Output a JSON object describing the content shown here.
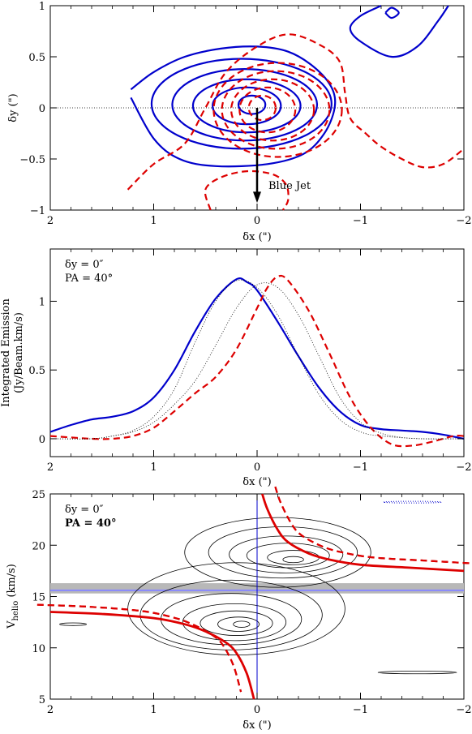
{
  "figure": {
    "panels": [
      {
        "id": "top",
        "xlabel": "δx (\")",
        "ylabel": "δy (\")",
        "xlim": [
          2,
          -2
        ],
        "ylim": [
          -1,
          1
        ],
        "xticks": [
          2,
          1,
          0,
          -1,
          -2
        ],
        "xtick_labels": [
          "2",
          "1",
          "0",
          "−1",
          "−2"
        ],
        "yticks": [
          1,
          0.5,
          0,
          -0.5,
          -1
        ],
        "ytick_labels": [
          "1",
          "0.5",
          "0",
          "−0.5",
          "−1"
        ],
        "annotation": "Blue Jet"
      },
      {
        "id": "middle",
        "xlabel": "δx (\")",
        "ylabel_line1": "Integrated Emission",
        "ylabel_line2": "(Jy/Beam.km/s)",
        "xlim": [
          2,
          -2
        ],
        "ylim": [
          -0.13,
          1.38
        ],
        "xticks": [
          2,
          1,
          0,
          -1,
          -2
        ],
        "xtick_labels": [
          "2",
          "1",
          "0",
          "−1",
          "−2"
        ],
        "yticks": [
          0,
          0.5,
          1
        ],
        "ytick_labels": [
          "0",
          "0.5",
          "1"
        ],
        "annotation_line1": "δy = 0″",
        "annotation_line2": "PA = 40°"
      },
      {
        "id": "bottom",
        "xlabel": "δx (\")",
        "ylabel": "V_helio (km/s)",
        "ylabel_main": "V",
        "ylabel_sub": "helio",
        "ylabel_unit": " (km/s)",
        "xlim": [
          2,
          -2
        ],
        "ylim": [
          5,
          25
        ],
        "xticks": [
          2,
          1,
          0,
          -1,
          -2
        ],
        "xtick_labels": [
          "2",
          "1",
          "0",
          "−1",
          "−2"
        ],
        "yticks": [
          5,
          10,
          15,
          20,
          25
        ],
        "ytick_labels": [
          "5",
          "10",
          "15",
          "20",
          "25"
        ],
        "annotation_line1": "δy = 0″",
        "annotation_line2": "PA = 40°"
      }
    ]
  },
  "chart_data": [
    {
      "type": "contour",
      "panel": "top",
      "series": [
        {
          "style": "blue-solid",
          "color": "#0000cc",
          "contours": [
            {
              "cx": 0.05,
              "cy": 0.03,
              "rx": 0.13,
              "ry": 0.09
            },
            {
              "cx": 0.1,
              "cy": 0.02,
              "rx": 0.33,
              "ry": 0.18
            },
            {
              "cx": 0.1,
              "cy": 0.02,
              "rx": 0.52,
              "ry": 0.26
            },
            {
              "cx": 0.12,
              "cy": 0.03,
              "rx": 0.7,
              "ry": 0.35
            },
            {
              "cx": 0.15,
              "cy": 0.04,
              "rx": 0.87,
              "ry": 0.44
            }
          ],
          "outer_contour": [
            [
              1.22,
              0.18
            ],
            [
              1.0,
              0.35
            ],
            [
              0.7,
              0.5
            ],
            [
              0.35,
              0.58
            ],
            [
              0.0,
              0.6
            ],
            [
              -0.3,
              0.55
            ],
            [
              -0.55,
              0.4
            ],
            [
              -0.72,
              0.2
            ],
            [
              -0.75,
              0.0
            ],
            [
              -0.65,
              -0.25
            ],
            [
              -0.45,
              -0.45
            ],
            [
              -0.1,
              -0.55
            ],
            [
              0.4,
              -0.57
            ],
            [
              0.75,
              -0.5
            ],
            [
              1.0,
              -0.3
            ],
            [
              1.22,
              0.1
            ]
          ],
          "corner_contour": [
            [
              -1.2,
              1.0
            ],
            [
              -1.0,
              0.9
            ],
            [
              -0.9,
              0.78
            ],
            [
              -1.0,
              0.65
            ],
            [
              -1.3,
              0.5
            ],
            [
              -1.55,
              0.6
            ],
            [
              -1.75,
              0.85
            ],
            [
              -1.85,
              1.0
            ]
          ],
          "small_loop": [
            [
              -1.24,
              0.93
            ],
            [
              -1.3,
              0.88
            ],
            [
              -1.37,
              0.93
            ],
            [
              -1.3,
              0.98
            ],
            [
              -1.24,
              0.93
            ]
          ]
        },
        {
          "style": "red-dashed",
          "color": "#dd0000",
          "contours": [
            {
              "cx": -0.05,
              "cy": 0.0,
              "rx": 0.13,
              "ry": 0.12
            },
            {
              "cx": -0.1,
              "cy": -0.02,
              "rx": 0.27,
              "ry": 0.22
            },
            {
              "cx": -0.15,
              "cy": -0.02,
              "rx": 0.4,
              "ry": 0.3
            },
            {
              "cx": -0.18,
              "cy": -0.02,
              "rx": 0.52,
              "ry": 0.38
            },
            {
              "cx": -0.2,
              "cy": -0.02,
              "rx": 0.62,
              "ry": 0.46
            }
          ],
          "outer_contour": [
            [
              1.25,
              -0.8
            ],
            [
              1.0,
              -0.55
            ],
            [
              0.7,
              -0.35
            ],
            [
              0.5,
              0.0
            ],
            [
              0.3,
              0.35
            ],
            [
              0.0,
              0.6
            ],
            [
              -0.3,
              0.72
            ],
            [
              -0.6,
              0.62
            ],
            [
              -0.8,
              0.45
            ],
            [
              -0.85,
              0.15
            ],
            [
              -0.9,
              -0.1
            ],
            [
              -1.05,
              -0.25
            ],
            [
              -1.2,
              -0.38
            ],
            [
              -1.4,
              -0.5
            ],
            [
              -1.6,
              -0.58
            ],
            [
              -1.8,
              -0.55
            ],
            [
              -2.0,
              -0.4
            ]
          ],
          "lower_contour": [
            [
              0.45,
              -1.0
            ],
            [
              0.5,
              -0.8
            ],
            [
              0.35,
              -0.68
            ],
            [
              0.1,
              -0.62
            ],
            [
              -0.15,
              -0.65
            ],
            [
              -0.28,
              -0.75
            ],
            [
              -0.3,
              -0.9
            ],
            [
              -0.25,
              -1.0
            ]
          ]
        }
      ]
    },
    {
      "type": "line",
      "panel": "middle",
      "series": [
        {
          "style": "blue-solid",
          "color": "#0000cc",
          "x": [
            2.0,
            1.8,
            1.6,
            1.4,
            1.2,
            1.0,
            0.8,
            0.6,
            0.4,
            0.2,
            0.1,
            0.0,
            -0.2,
            -0.4,
            -0.6,
            -0.8,
            -1.0,
            -1.2,
            -1.4,
            -1.6,
            -1.8,
            -2.0
          ],
          "y": [
            0.05,
            0.1,
            0.14,
            0.16,
            0.2,
            0.3,
            0.5,
            0.78,
            1.02,
            1.16,
            1.14,
            1.08,
            0.85,
            0.6,
            0.37,
            0.2,
            0.1,
            0.07,
            0.06,
            0.05,
            0.03,
            0.0
          ]
        },
        {
          "style": "red-dashed",
          "color": "#dd0000",
          "x": [
            2.0,
            1.6,
            1.4,
            1.2,
            1.0,
            0.8,
            0.6,
            0.4,
            0.2,
            0.0,
            -0.1,
            -0.2,
            -0.3,
            -0.5,
            -0.7,
            -0.9,
            -1.1,
            -1.3,
            -1.5,
            -1.7,
            -1.9,
            -2.0
          ],
          "y": [
            0.02,
            0.0,
            0.0,
            0.02,
            0.08,
            0.2,
            0.33,
            0.45,
            0.65,
            0.95,
            1.1,
            1.18,
            1.15,
            0.93,
            0.62,
            0.3,
            0.08,
            -0.04,
            -0.05,
            -0.02,
            0.02,
            0.02
          ]
        },
        {
          "style": "black-dotted",
          "color": "#000000",
          "x": [
            2.0,
            1.6,
            1.4,
            1.2,
            1.0,
            0.8,
            0.6,
            0.4,
            0.2,
            0.0,
            -0.2,
            -0.4,
            -0.6,
            -0.8,
            -1.0,
            -1.2,
            -1.6,
            -2.0
          ],
          "y": [
            0.0,
            0.0,
            0.02,
            0.06,
            0.16,
            0.36,
            0.7,
            1.0,
            1.15,
            1.1,
            0.9,
            0.6,
            0.32,
            0.14,
            0.05,
            0.02,
            0.0,
            0.0
          ]
        },
        {
          "style": "black-dotted",
          "color": "#000000",
          "x": [
            2.0,
            1.6,
            1.4,
            1.2,
            1.0,
            0.8,
            0.6,
            0.4,
            0.2,
            0.0,
            -0.2,
            -0.4,
            -0.6,
            -0.8,
            -1.0,
            -1.2,
            -1.4,
            -1.6,
            -2.0
          ],
          "y": [
            0.0,
            0.0,
            0.02,
            0.05,
            0.12,
            0.25,
            0.42,
            0.68,
            0.95,
            1.12,
            1.1,
            0.9,
            0.6,
            0.3,
            0.12,
            0.04,
            0.01,
            0.0,
            0.0
          ]
        }
      ]
    },
    {
      "type": "position-velocity",
      "panel": "bottom",
      "systemic_band": [
        15.3,
        16.3
      ],
      "systemic_line": 15.6,
      "vertical_line_x": 0.0,
      "beam_ellipse": {
        "cx": -1.5,
        "cy": 24.2,
        "rx": 0.28,
        "ry": 0.25
      },
      "series": [
        {
          "style": "red-solid",
          "color": "#dd0000",
          "name": "",
          "branch_low": {
            "x": [
              2.0,
              1.5,
              1.0,
              0.7,
              0.5,
              0.3,
              0.2,
              0.1,
              0.03
            ],
            "v": [
              13.5,
              13.3,
              12.9,
              12.3,
              11.6,
              10.5,
              9.5,
              7.5,
              5.0
            ]
          },
          "branch_high": {
            "x": [
              -0.05,
              -0.1,
              -0.2,
              -0.3,
              -0.5,
              -0.7,
              -1.0,
              -1.5,
              -2.0
            ],
            "v": [
              25.0,
              23.5,
              21.5,
              20.3,
              19.2,
              18.6,
              18.1,
              17.8,
              17.5
            ]
          }
        },
        {
          "style": "red-dashed",
          "color": "#dd0000",
          "offset": 0.7
        }
      ],
      "contours": [
        {
          "cx": 0.15,
          "cy": 12.3,
          "rx": 0.08,
          "ry": 0.3
        },
        {
          "cx": 0.18,
          "cy": 12.3,
          "rx": 0.2,
          "ry": 0.7
        },
        {
          "cx": 0.2,
          "cy": 12.4,
          "rx": 0.35,
          "ry": 1.2
        },
        {
          "cx": 0.22,
          "cy": 12.5,
          "rx": 0.5,
          "ry": 1.8
        },
        {
          "cx": 0.25,
          "cy": 12.8,
          "rx": 0.68,
          "ry": 2.5
        },
        {
          "cx": 0.25,
          "cy": 13.2,
          "rx": 0.88,
          "ry": 3.4
        },
        {
          "cx": 0.2,
          "cy": 13.8,
          "rx": 1.05,
          "ry": 4.5
        },
        {
          "cx": -0.35,
          "cy": 18.6,
          "rx": 0.1,
          "ry": 0.3
        },
        {
          "cx": -0.35,
          "cy": 18.8,
          "rx": 0.25,
          "ry": 0.7
        },
        {
          "cx": -0.3,
          "cy": 19.0,
          "rx": 0.4,
          "ry": 1.2
        },
        {
          "cx": -0.28,
          "cy": 19.1,
          "rx": 0.55,
          "ry": 1.8
        },
        {
          "cx": -0.25,
          "cy": 19.3,
          "rx": 0.72,
          "ry": 2.5
        },
        {
          "cx": -0.2,
          "cy": 19.3,
          "rx": 0.9,
          "ry": 3.4
        },
        {
          "cx": -1.55,
          "cy": 7.6,
          "rx": 0.38,
          "ry": 0.13
        },
        {
          "cx": 1.78,
          "cy": 12.3,
          "rx": 0.13,
          "ry": 0.13
        }
      ]
    }
  ],
  "colors": {
    "blue": "#0000cc",
    "red": "#dd0000",
    "band": "#b8b8b8",
    "sys": "#8888ff"
  }
}
